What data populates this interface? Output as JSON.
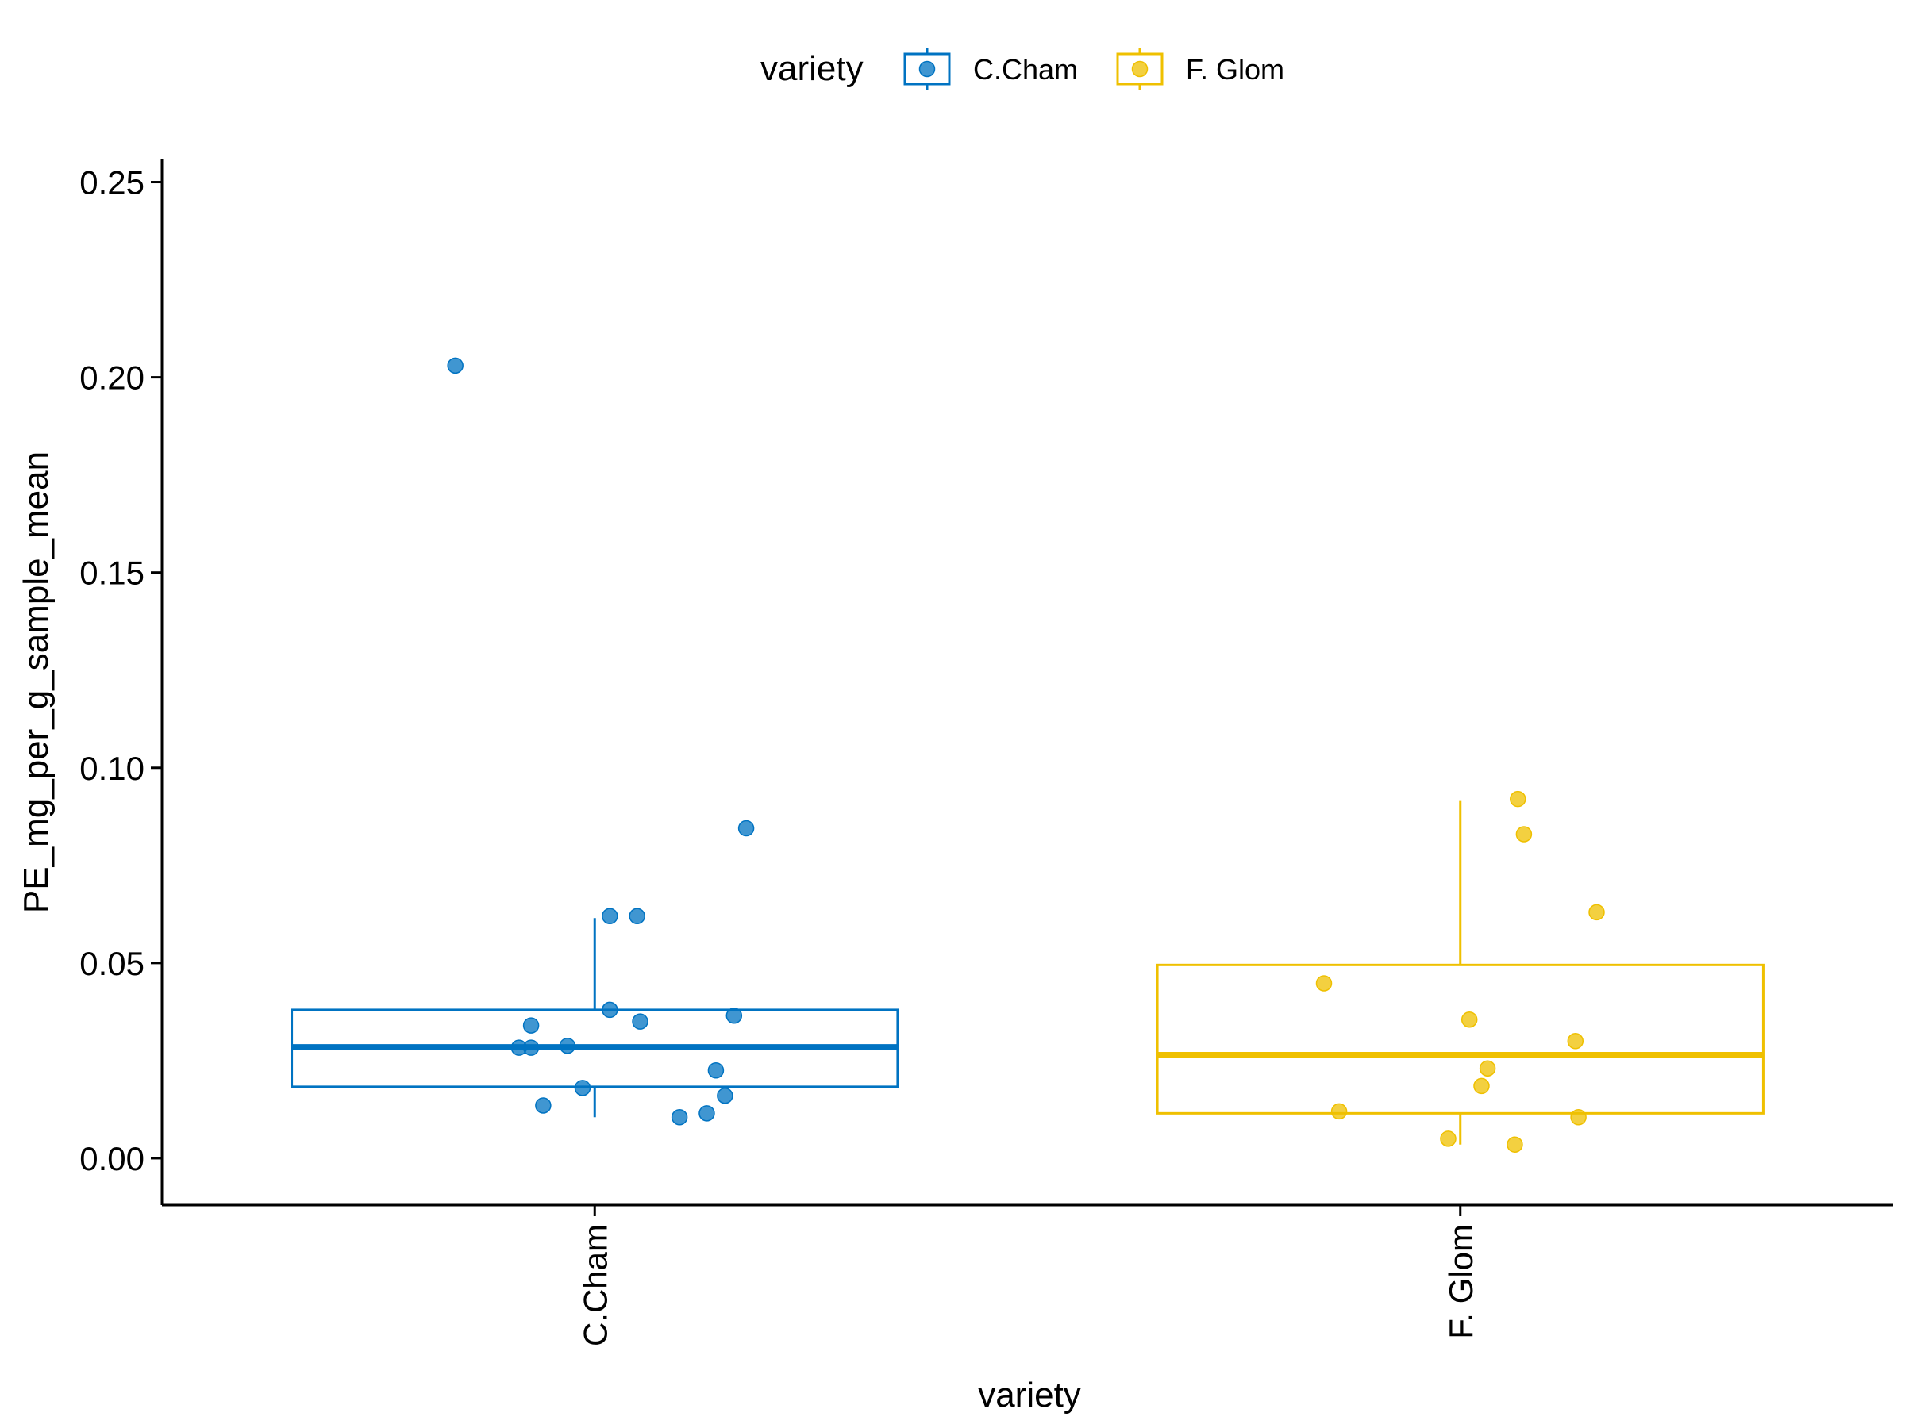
{
  "chart_data": {
    "type": "box",
    "title": "",
    "xlabel": "variety",
    "ylabel": "PE_mg_per_g_sample_mean",
    "ylim": [
      -0.012,
      0.256
    ],
    "y_ticks": [
      "0.00",
      "0.05",
      "0.10",
      "0.15",
      "0.20",
      "0.25"
    ],
    "grid": false,
    "legend": {
      "title": "variety",
      "placement": "top",
      "entries": [
        "C.Cham",
        "F. Glom"
      ]
    },
    "categories": [
      "C.Cham",
      "F. Glom"
    ],
    "series": [
      {
        "name": "C.Cham",
        "color": "#0073C2",
        "box": {
          "whisker_low": 0.0105,
          "q1": 0.0183,
          "median": 0.0285,
          "q3": 0.038,
          "whisker_high": 0.0615
        },
        "points": [
          {
            "jitter": -0.46,
            "y": 0.203
          },
          {
            "jitter": 0.5,
            "y": 0.0845
          },
          {
            "jitter": 0.05,
            "y": 0.062
          },
          {
            "jitter": 0.14,
            "y": 0.062
          },
          {
            "jitter": 0.05,
            "y": 0.038
          },
          {
            "jitter": 0.15,
            "y": 0.035
          },
          {
            "jitter": 0.46,
            "y": 0.0365
          },
          {
            "jitter": -0.21,
            "y": 0.034
          },
          {
            "jitter": -0.25,
            "y": 0.0283
          },
          {
            "jitter": -0.21,
            "y": 0.0283
          },
          {
            "jitter": -0.09,
            "y": 0.0288
          },
          {
            "jitter": 0.4,
            "y": 0.0225
          },
          {
            "jitter": -0.04,
            "y": 0.018
          },
          {
            "jitter": 0.43,
            "y": 0.016
          },
          {
            "jitter": -0.17,
            "y": 0.0135
          },
          {
            "jitter": 0.37,
            "y": 0.0115
          },
          {
            "jitter": 0.28,
            "y": 0.0105
          }
        ]
      },
      {
        "name": "F. Glom",
        "color": "#EFC000",
        "box": {
          "whisker_low": 0.0035,
          "q1": 0.0115,
          "median": 0.0265,
          "q3": 0.0495,
          "whisker_high": 0.0915
        },
        "points": [
          {
            "jitter": 0.19,
            "y": 0.092
          },
          {
            "jitter": 0.21,
            "y": 0.083
          },
          {
            "jitter": 0.45,
            "y": 0.063
          },
          {
            "jitter": -0.45,
            "y": 0.0448
          },
          {
            "jitter": 0.03,
            "y": 0.0355
          },
          {
            "jitter": 0.38,
            "y": 0.03
          },
          {
            "jitter": 0.09,
            "y": 0.023
          },
          {
            "jitter": 0.07,
            "y": 0.0185
          },
          {
            "jitter": -0.4,
            "y": 0.012
          },
          {
            "jitter": 0.39,
            "y": 0.0105
          },
          {
            "jitter": -0.04,
            "y": 0.005
          },
          {
            "jitter": 0.18,
            "y": 0.0035
          }
        ]
      }
    ]
  }
}
